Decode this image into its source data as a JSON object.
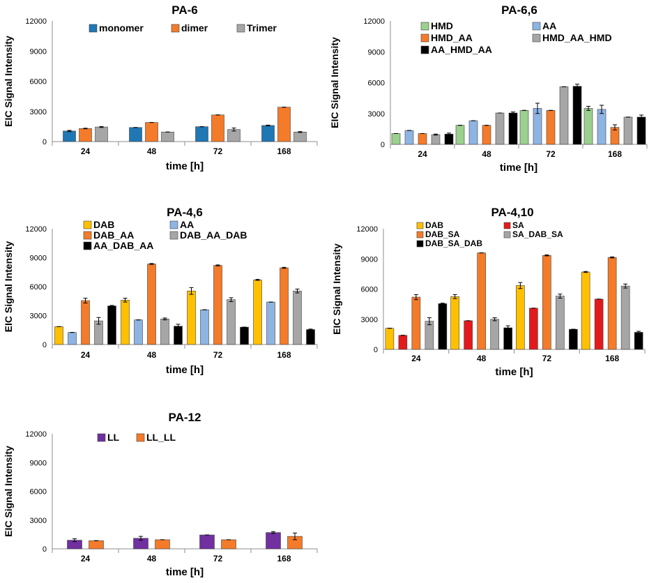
{
  "chart_data": [
    {
      "type": "bar",
      "title": "PA-6",
      "xlabel": "time [h]",
      "ylabel": "EIC Signal Intensity",
      "ylim": [
        0,
        12000
      ],
      "yticks": [
        "0",
        "3000",
        "6000",
        "9000",
        "12000"
      ],
      "categories": [
        "24",
        "48",
        "72",
        "168"
      ],
      "legend_layout": "row",
      "series": [
        {
          "name": "monomer",
          "color": "#1f77b4",
          "values": [
            1050,
            1400,
            1480,
            1600
          ],
          "errors": [
            60,
            0,
            0,
            40
          ]
        },
        {
          "name": "dimer",
          "color": "#f47b2a",
          "values": [
            1300,
            1900,
            2650,
            3420
          ],
          "errors": [
            30,
            0,
            0,
            0
          ]
        },
        {
          "name": "Trimer",
          "color": "#a6a6a6",
          "values": [
            1450,
            950,
            1200,
            950
          ],
          "errors": [
            50,
            0,
            150,
            40
          ]
        }
      ]
    },
    {
      "type": "bar",
      "title": "PA-6,6",
      "xlabel": "time [h]",
      "ylabel": "EIC Signal Intensity",
      "ylim": [
        0,
        12000
      ],
      "yticks": [
        "0",
        "3000",
        "6000",
        "9000",
        "12000"
      ],
      "categories": [
        "24",
        "48",
        "72",
        "168"
      ],
      "legend_layout": "grid",
      "series": [
        {
          "name": "HMD",
          "color": "#9bd08f",
          "values": [
            1050,
            1850,
            3300,
            3500
          ],
          "errors": [
            0,
            0,
            0,
            200
          ]
        },
        {
          "name": "AA",
          "color": "#8eb4e3",
          "values": [
            1350,
            2300,
            3500,
            3400
          ],
          "errors": [
            0,
            0,
            500,
            400
          ]
        },
        {
          "name": "HMD_AA",
          "color": "#f47b2a",
          "values": [
            1050,
            1850,
            3300,
            1650
          ],
          "errors": [
            0,
            0,
            0,
            250
          ]
        },
        {
          "name": "HMD_AA_HMD",
          "color": "#a6a6a6",
          "values": [
            950,
            3050,
            5600,
            2650
          ],
          "errors": [
            50,
            0,
            0,
            0
          ]
        },
        {
          "name": "AA_HMD_AA",
          "color": "#000000",
          "values": [
            1000,
            3050,
            5650,
            2650
          ],
          "errors": [
            100,
            100,
            200,
            200
          ]
        }
      ]
    },
    {
      "type": "bar",
      "title": "PA-4,6",
      "xlabel": "time [h]",
      "ylabel": "EIC Signal Intensity",
      "ylim": [
        0,
        12000
      ],
      "yticks": [
        "0",
        "3000",
        "6000",
        "9000",
        "12000"
      ],
      "categories": [
        "24",
        "48",
        "72",
        "168"
      ],
      "legend_layout": "grid",
      "series": [
        {
          "name": "DAB",
          "color": "#ffc000",
          "values": [
            1850,
            4600,
            5550,
            6700
          ],
          "errors": [
            0,
            200,
            350,
            50
          ]
        },
        {
          "name": "AA",
          "color": "#8eb4e3",
          "values": [
            1250,
            2550,
            3600,
            4400
          ],
          "errors": [
            0,
            0,
            0,
            0
          ]
        },
        {
          "name": "DAB_AA",
          "color": "#f47b2a",
          "values": [
            4550,
            8350,
            8200,
            7950
          ],
          "errors": [
            250,
            50,
            50,
            50
          ]
        },
        {
          "name": "DAB_AA_DAB",
          "color": "#a6a6a6",
          "values": [
            2450,
            2650,
            4650,
            5550
          ],
          "errors": [
            350,
            100,
            200,
            200
          ]
        },
        {
          "name": "AA_DAB_AA",
          "color": "#000000",
          "values": [
            4000,
            1900,
            1800,
            1550
          ],
          "errors": [
            50,
            200,
            0,
            50
          ]
        }
      ]
    },
    {
      "type": "bar",
      "title": "PA-4,10",
      "xlabel": "time [h]",
      "ylabel": "EIC Signal Intensity",
      "ylim": [
        0,
        12000
      ],
      "yticks": [
        "0",
        "3000",
        "6000",
        "9000",
        "12000"
      ],
      "categories": [
        "24",
        "48",
        "72",
        "168"
      ],
      "legend_layout": "grid",
      "series": [
        {
          "name": "DAB",
          "color": "#ffc000",
          "values": [
            2100,
            5250,
            6350,
            7700
          ],
          "errors": [
            0,
            200,
            300,
            50
          ]
        },
        {
          "name": "SA",
          "color": "#e31a1c",
          "values": [
            1400,
            2850,
            4100,
            5000
          ],
          "errors": [
            0,
            0,
            0,
            0
          ]
        },
        {
          "name": "DAB_SA",
          "color": "#f47b2a",
          "values": [
            5200,
            9600,
            9350,
            9150
          ],
          "errors": [
            250,
            0,
            50,
            50
          ]
        },
        {
          "name": "SA_DAB_SA",
          "color": "#a6a6a6",
          "values": [
            2800,
            3000,
            5300,
            6300
          ],
          "errors": [
            350,
            150,
            200,
            200
          ]
        },
        {
          "name": "DAB_SA_DAB",
          "color": "#000000",
          "values": [
            4550,
            2150,
            2000,
            1700
          ],
          "errors": [
            50,
            200,
            0,
            100
          ]
        }
      ]
    },
    {
      "type": "bar",
      "title": "PA-12",
      "xlabel": "time [h]",
      "ylabel": "EIC Signal Intensity",
      "ylim": [
        0,
        12000
      ],
      "yticks": [
        "0",
        "3000",
        "6000",
        "9000",
        "12000"
      ],
      "categories": [
        "24",
        "48",
        "72",
        "168"
      ],
      "legend_layout": "row",
      "series": [
        {
          "name": "LL",
          "color": "#7030a0",
          "values": [
            900,
            1100,
            1450,
            1700
          ],
          "errors": [
            150,
            200,
            0,
            100
          ]
        },
        {
          "name": "LL_LL",
          "color": "#f47b2a",
          "values": [
            850,
            950,
            950,
            1300
          ],
          "errors": [
            0,
            0,
            0,
            350
          ]
        }
      ]
    }
  ]
}
